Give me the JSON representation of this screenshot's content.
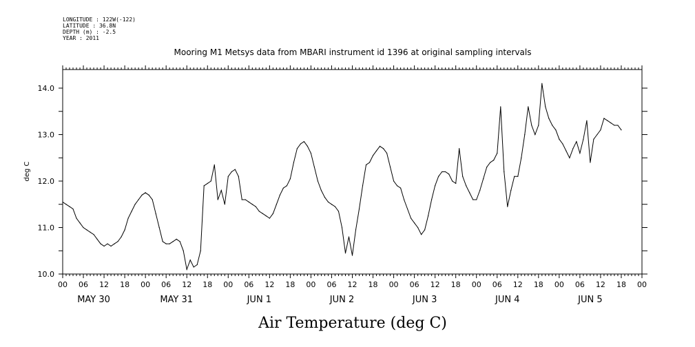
{
  "header": {
    "longitude": "LONGITUDE : 122W(-122)",
    "latitude": "LATITUDE : 36.8N",
    "depth": "DEPTH (m) : -2.5",
    "year": "YEAR : 2011"
  },
  "chart_data": {
    "type": "line",
    "title": "Mooring M1 Metsys data from MBARI instrument id 1396 at original sampling intervals",
    "xlabel": "Air Temperature (deg C)",
    "ylabel": "deg C",
    "xlim_hours": [
      0,
      168
    ],
    "ylim": [
      10.0,
      14.4
    ],
    "y_ticks": [
      "10.0",
      "11.0",
      "12.0",
      "13.0",
      "14.0"
    ],
    "x_hour_ticks": [
      "00",
      "06",
      "12",
      "18",
      "00",
      "06",
      "12",
      "18",
      "00",
      "06",
      "12",
      "18",
      "00",
      "06",
      "12",
      "18",
      "00",
      "06",
      "12",
      "18",
      "00",
      "06",
      "12",
      "18",
      "00",
      "06",
      "12",
      "18",
      "00"
    ],
    "day_labels": [
      "MAY 30",
      "MAY 31",
      "JUN 1",
      "JUN 2",
      "JUN 3",
      "JUN 4",
      "JUN 5"
    ],
    "grid": false,
    "series": [
      {
        "color": "#000000",
        "points": [
          [
            0,
            11.55
          ],
          [
            1,
            11.5
          ],
          [
            2,
            11.45
          ],
          [
            3,
            11.4
          ],
          [
            4,
            11.2
          ],
          [
            5,
            11.1
          ],
          [
            6,
            11.0
          ],
          [
            7,
            10.95
          ],
          [
            8,
            10.9
          ],
          [
            9,
            10.85
          ],
          [
            10,
            10.75
          ],
          [
            11,
            10.65
          ],
          [
            12,
            10.6
          ],
          [
            13,
            10.65
          ],
          [
            14,
            10.6
          ],
          [
            15,
            10.65
          ],
          [
            16,
            10.7
          ],
          [
            17,
            10.8
          ],
          [
            18,
            10.95
          ],
          [
            19,
            11.2
          ],
          [
            20,
            11.35
          ],
          [
            21,
            11.5
          ],
          [
            22,
            11.6
          ],
          [
            23,
            11.7
          ],
          [
            24,
            11.75
          ],
          [
            25,
            11.7
          ],
          [
            26,
            11.6
          ],
          [
            27,
            11.3
          ],
          [
            28,
            11.0
          ],
          [
            29,
            10.7
          ],
          [
            30,
            10.65
          ],
          [
            31,
            10.65
          ],
          [
            32,
            10.7
          ],
          [
            33,
            10.75
          ],
          [
            34,
            10.7
          ],
          [
            35,
            10.5
          ],
          [
            36,
            10.1
          ],
          [
            37,
            10.3
          ],
          [
            38,
            10.15
          ],
          [
            39,
            10.2
          ],
          [
            40,
            10.5
          ],
          [
            41,
            11.9
          ],
          [
            42,
            11.95
          ],
          [
            43,
            12.0
          ],
          [
            44,
            12.35
          ],
          [
            45,
            11.6
          ],
          [
            46,
            11.8
          ],
          [
            47,
            11.5
          ],
          [
            48,
            12.1
          ],
          [
            49,
            12.2
          ],
          [
            50,
            12.25
          ],
          [
            51,
            12.1
          ],
          [
            52,
            11.6
          ],
          [
            53,
            11.6
          ],
          [
            54,
            11.55
          ],
          [
            55,
            11.5
          ],
          [
            56,
            11.45
          ],
          [
            57,
            11.35
          ],
          [
            58,
            11.3
          ],
          [
            59,
            11.25
          ],
          [
            60,
            11.2
          ],
          [
            61,
            11.3
          ],
          [
            62,
            11.5
          ],
          [
            63,
            11.7
          ],
          [
            64,
            11.85
          ],
          [
            65,
            11.9
          ],
          [
            66,
            12.05
          ],
          [
            67,
            12.4
          ],
          [
            68,
            12.7
          ],
          [
            69,
            12.8
          ],
          [
            70,
            12.85
          ],
          [
            71,
            12.75
          ],
          [
            72,
            12.6
          ],
          [
            73,
            12.3
          ],
          [
            74,
            12.0
          ],
          [
            75,
            11.8
          ],
          [
            76,
            11.65
          ],
          [
            77,
            11.55
          ],
          [
            78,
            11.5
          ],
          [
            79,
            11.45
          ],
          [
            80,
            11.35
          ],
          [
            81,
            11.0
          ],
          [
            82,
            10.45
          ],
          [
            83,
            10.8
          ],
          [
            84,
            10.4
          ],
          [
            85,
            10.95
          ],
          [
            86,
            11.4
          ],
          [
            87,
            11.9
          ],
          [
            88,
            12.35
          ],
          [
            89,
            12.4
          ],
          [
            90,
            12.55
          ],
          [
            91,
            12.65
          ],
          [
            92,
            12.75
          ],
          [
            93,
            12.7
          ],
          [
            94,
            12.6
          ],
          [
            95,
            12.3
          ],
          [
            96,
            12.0
          ],
          [
            97,
            11.9
          ],
          [
            98,
            11.85
          ],
          [
            99,
            11.6
          ],
          [
            100,
            11.4
          ],
          [
            101,
            11.2
          ],
          [
            102,
            11.1
          ],
          [
            103,
            11.0
          ],
          [
            104,
            10.85
          ],
          [
            105,
            10.95
          ],
          [
            106,
            11.25
          ],
          [
            107,
            11.6
          ],
          [
            108,
            11.9
          ],
          [
            109,
            12.1
          ],
          [
            110,
            12.2
          ],
          [
            111,
            12.2
          ],
          [
            112,
            12.15
          ],
          [
            113,
            12.0
          ],
          [
            114,
            11.95
          ],
          [
            115,
            12.7
          ],
          [
            116,
            12.1
          ],
          [
            117,
            11.9
          ],
          [
            118,
            11.75
          ],
          [
            119,
            11.6
          ],
          [
            120,
            11.6
          ],
          [
            121,
            11.8
          ],
          [
            122,
            12.05
          ],
          [
            123,
            12.3
          ],
          [
            124,
            12.4
          ],
          [
            125,
            12.45
          ],
          [
            126,
            12.6
          ],
          [
            127,
            13.6
          ],
          [
            128,
            12.2
          ],
          [
            129,
            11.45
          ],
          [
            130,
            11.8
          ],
          [
            131,
            12.1
          ],
          [
            132,
            12.1
          ],
          [
            133,
            12.5
          ],
          [
            134,
            13.0
          ],
          [
            135,
            13.6
          ],
          [
            136,
            13.2
          ],
          [
            137,
            13.0
          ],
          [
            138,
            13.2
          ],
          [
            139,
            14.1
          ],
          [
            140,
            13.6
          ],
          [
            141,
            13.35
          ],
          [
            142,
            13.2
          ],
          [
            143,
            13.1
          ],
          [
            144,
            12.9
          ],
          [
            145,
            12.8
          ],
          [
            146,
            12.65
          ],
          [
            147,
            12.5
          ],
          [
            148,
            12.7
          ],
          [
            149,
            12.85
          ],
          [
            150,
            12.6
          ],
          [
            151,
            12.9
          ],
          [
            152,
            13.3
          ],
          [
            153,
            12.4
          ],
          [
            154,
            12.9
          ],
          [
            155,
            13.0
          ],
          [
            156,
            13.1
          ],
          [
            157,
            13.35
          ],
          [
            158,
            13.3
          ],
          [
            159,
            13.25
          ],
          [
            160,
            13.2
          ],
          [
            161,
            13.2
          ],
          [
            162,
            13.1
          ]
        ]
      }
    ]
  }
}
